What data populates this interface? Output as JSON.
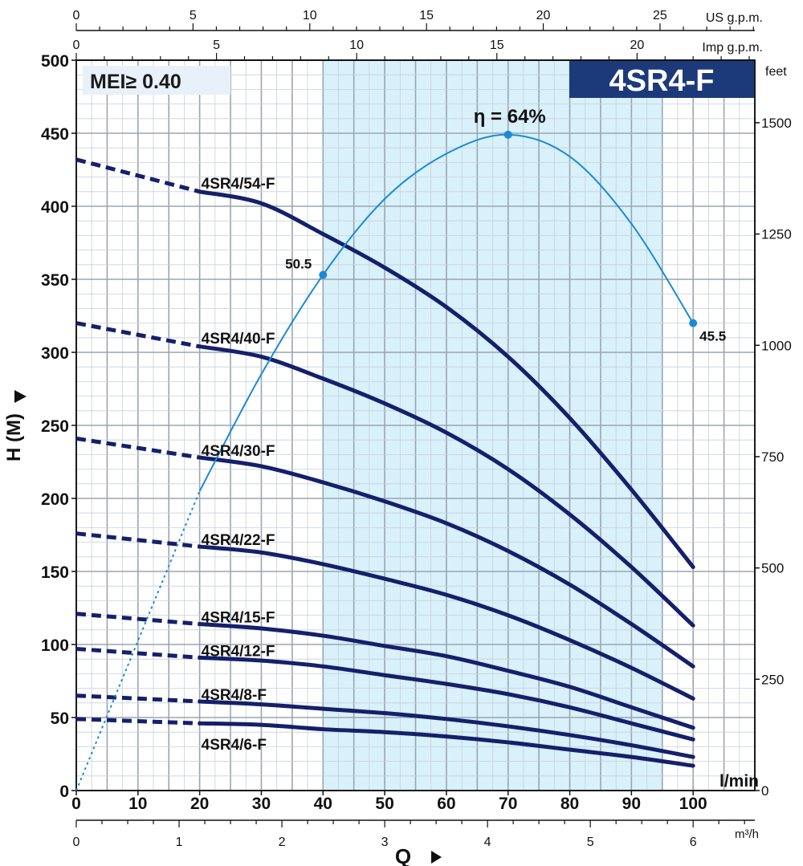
{
  "chart_data": {
    "type": "line",
    "badge": "MEI≥ 0.40",
    "model": "4SR4-F",
    "ylabel": "H (M)",
    "xlabel": "Q",
    "units": {
      "lmin": "l/min",
      "m3h": "m³/h",
      "usgpm": "US g.p.m.",
      "impgpm": "Imp g.p.m.",
      "feet": "feet"
    },
    "axes": {
      "lmin": {
        "range": [
          0,
          110
        ],
        "ticks": [
          0,
          10,
          20,
          30,
          40,
          50,
          60,
          70,
          80,
          90,
          100
        ]
      },
      "m3h": {
        "range": [
          0,
          6.6
        ],
        "ticks": [
          0,
          1,
          2,
          3,
          4,
          5,
          6
        ]
      },
      "usgpm": {
        "range": [
          0,
          29.06
        ],
        "ticks": [
          0,
          5,
          10,
          15,
          20,
          25
        ]
      },
      "impgpm": {
        "range": [
          0,
          24.2
        ],
        "ticks": [
          0,
          5,
          10,
          15,
          20
        ]
      },
      "head_m": {
        "range": [
          0,
          500
        ],
        "ticks": [
          0,
          50,
          100,
          150,
          200,
          250,
          300,
          350,
          400,
          450,
          500
        ]
      },
      "feet": {
        "range": [
          0,
          1640.4
        ],
        "ticks": [
          0,
          250,
          500,
          750,
          1000,
          1250,
          1500
        ]
      }
    },
    "recommended_range_lmin": [
      40,
      95
    ],
    "grid": true,
    "series": [
      {
        "name": "4SR4/54-F",
        "label_q": 20,
        "label_h": 416,
        "dashed": [
          [
            0,
            432
          ],
          [
            20,
            410
          ]
        ],
        "solid": [
          [
            20,
            410
          ],
          [
            30,
            402
          ],
          [
            40,
            381
          ],
          [
            50,
            358
          ],
          [
            60,
            331
          ],
          [
            70,
            297
          ],
          [
            80,
            255
          ],
          [
            90,
            206
          ],
          [
            100,
            153
          ]
        ]
      },
      {
        "name": "4SR4/40-F",
        "label_q": 20,
        "label_h": 310,
        "dashed": [
          [
            0,
            320
          ],
          [
            20,
            304
          ]
        ],
        "solid": [
          [
            20,
            304
          ],
          [
            30,
            297
          ],
          [
            40,
            282
          ],
          [
            50,
            265
          ],
          [
            60,
            245
          ],
          [
            70,
            220
          ],
          [
            80,
            189
          ],
          [
            90,
            153
          ],
          [
            100,
            113
          ]
        ]
      },
      {
        "name": "4SR4/30-F",
        "label_q": 20,
        "label_h": 233,
        "dashed": [
          [
            0,
            241
          ],
          [
            20,
            228
          ]
        ],
        "solid": [
          [
            20,
            228
          ],
          [
            30,
            222
          ],
          [
            40,
            211
          ],
          [
            50,
            198
          ],
          [
            60,
            183
          ],
          [
            70,
            164
          ],
          [
            80,
            141
          ],
          [
            90,
            114
          ],
          [
            100,
            85
          ]
        ]
      },
      {
        "name": "4SR4/22-F",
        "label_q": 20,
        "label_h": 172,
        "dashed": [
          [
            0,
            176
          ],
          [
            20,
            167
          ]
        ],
        "solid": [
          [
            20,
            167
          ],
          [
            30,
            163
          ],
          [
            40,
            155
          ],
          [
            50,
            145
          ],
          [
            60,
            134
          ],
          [
            70,
            120
          ],
          [
            80,
            103
          ],
          [
            90,
            84
          ],
          [
            100,
            63
          ]
        ]
      },
      {
        "name": "4SR4/15-F",
        "label_q": 20,
        "label_h": 119,
        "dashed": [
          [
            0,
            121
          ],
          [
            20,
            114
          ]
        ],
        "solid": [
          [
            20,
            114
          ],
          [
            30,
            111
          ],
          [
            40,
            106
          ],
          [
            50,
            99
          ],
          [
            60,
            92
          ],
          [
            70,
            82
          ],
          [
            80,
            71
          ],
          [
            90,
            57
          ],
          [
            100,
            43
          ]
        ]
      },
      {
        "name": "4SR4/12-F",
        "label_q": 20,
        "label_h": 96,
        "dashed": [
          [
            0,
            97
          ],
          [
            20,
            91
          ]
        ],
        "solid": [
          [
            20,
            91
          ],
          [
            30,
            89
          ],
          [
            40,
            85
          ],
          [
            50,
            79
          ],
          [
            60,
            73
          ],
          [
            70,
            66
          ],
          [
            80,
            57
          ],
          [
            90,
            46
          ],
          [
            100,
            35
          ]
        ]
      },
      {
        "name": "4SR4/8-F",
        "label_q": 20,
        "label_h": 66,
        "dashed": [
          [
            0,
            65
          ],
          [
            20,
            61
          ]
        ],
        "solid": [
          [
            20,
            61
          ],
          [
            30,
            59
          ],
          [
            40,
            56
          ],
          [
            50,
            53
          ],
          [
            60,
            49
          ],
          [
            70,
            44
          ],
          [
            80,
            38
          ],
          [
            90,
            31
          ],
          [
            100,
            23
          ]
        ]
      },
      {
        "name": "4SR4/6-F",
        "label_q": 20,
        "label_h": 32,
        "dashed": [
          [
            0,
            49
          ],
          [
            20,
            46
          ]
        ],
        "solid": [
          [
            20,
            46
          ],
          [
            30,
            45
          ],
          [
            40,
            42
          ],
          [
            50,
            40
          ],
          [
            60,
            37
          ],
          [
            70,
            33
          ],
          [
            80,
            28
          ],
          [
            90,
            23
          ],
          [
            100,
            17
          ]
        ]
      }
    ],
    "efficiency": {
      "max_label": "η = 64%",
      "dotted": [
        [
          0,
          0
        ],
        [
          20,
          205
        ]
      ],
      "solid": [
        [
          20,
          205
        ],
        [
          30,
          285
        ],
        [
          40,
          353
        ],
        [
          50,
          405
        ],
        [
          60,
          436
        ],
        [
          70,
          449
        ],
        [
          80,
          434
        ],
        [
          90,
          388
        ],
        [
          100,
          320
        ]
      ],
      "points": [
        {
          "q": 40,
          "h": 353,
          "label": "50.5"
        },
        {
          "q": 70,
          "h": 449,
          "label": ""
        },
        {
          "q": 100,
          "h": 320,
          "label": "45.5"
        }
      ]
    }
  }
}
